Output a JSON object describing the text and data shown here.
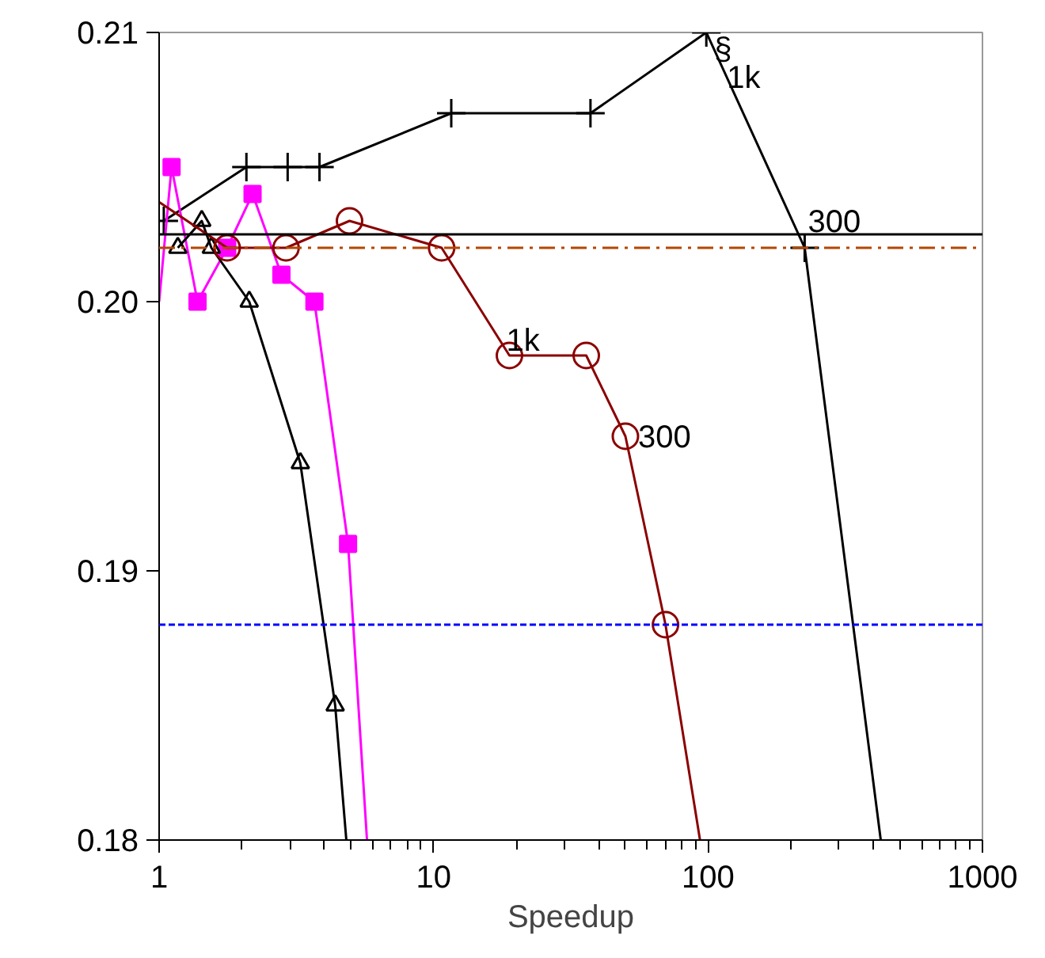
{
  "chart_data": {
    "type": "line",
    "xlabel": "Speedup",
    "log": "x",
    "grid": false,
    "xlim": [
      1,
      1000
    ],
    "ylim": [
      0.18,
      0.21
    ],
    "xticks": [
      1,
      10,
      100,
      1000
    ],
    "yticks": [
      0.18,
      0.19,
      {
        "value": 0.2,
        "label": "0.20"
      },
      0.21
    ],
    "series": [
      {
        "color": "#000000",
        "marker": "cross",
        "x": [
          1.04,
          2.08,
          2.94,
          3.84,
          11.6,
          37.3,
          98.6,
          225,
          426
        ],
        "values": [
          0.203,
          0.205,
          0.205,
          0.205,
          0.207,
          0.207,
          0.21,
          0.202,
          0.18
        ]
      },
      {
        "color": "#ff00ff",
        "marker": "square",
        "x": [
          1.0,
          1.11,
          1.38,
          1.77,
          2.19,
          2.79,
          3.68,
          4.88,
          5.72
        ],
        "values": [
          0.2,
          0.205,
          0.2,
          0.202,
          0.204,
          0.201,
          0.2,
          0.191,
          0.18
        ]
      },
      {
        "color": "#000000",
        "marker": "triangle",
        "x": [
          1.17,
          1.43,
          1.55,
          2.13,
          3.27,
          4.38,
          4.81
        ],
        "values": [
          0.202,
          0.203,
          0.202,
          0.2,
          0.194,
          0.185,
          0.18
        ]
      },
      {
        "color": "#8b0000",
        "marker": "circle",
        "x": [
          1.0,
          1.77,
          2.9,
          4.94,
          10.7,
          18.9,
          36,
          50,
          70,
          93.5
        ],
        "values": [
          0.2037,
          0.202,
          0.202,
          0.203,
          0.202,
          0.198,
          0.198,
          0.195,
          0.188,
          0.18
        ]
      }
    ],
    "ref_lines": [
      {
        "axis": "y",
        "value": 0.2025,
        "color": "#000000",
        "line_style": "solid"
      },
      {
        "axis": "y",
        "value": 0.202,
        "color": "#b34700",
        "line_style": "dashdot"
      },
      {
        "axis": "y",
        "value": 0.188,
        "color": "#0000ff",
        "line_style": "dashed"
      }
    ],
    "annotations": [
      {
        "text": "§",
        "x": 100,
        "y": 0.21
      },
      {
        "text": "1k",
        "x": 100,
        "y": 0.21
      },
      {
        "text": "300",
        "x": 225,
        "y": 0.202
      },
      {
        "text": "1k",
        "x": 18.9,
        "y": 0.198
      },
      {
        "text": "300",
        "x": 50,
        "y": 0.195
      }
    ]
  }
}
